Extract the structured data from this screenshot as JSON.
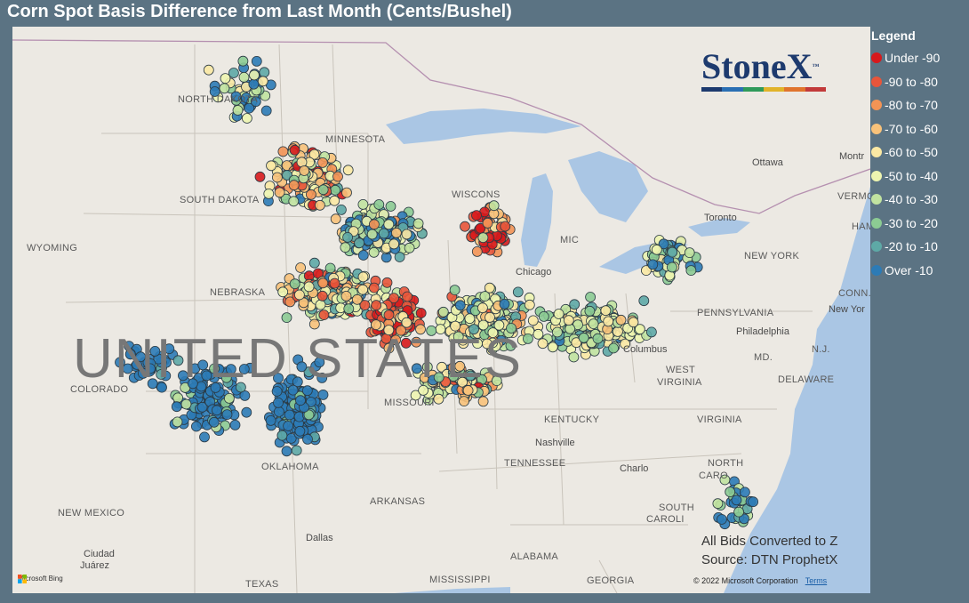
{
  "title": "Corn Spot Basis Difference from Last Month (Cents/Bushel)",
  "legend": {
    "title": "Legend",
    "items": [
      {
        "label": "Under -90",
        "color": "#d7191c"
      },
      {
        "label": "-90 to -80",
        "color": "#e8553a"
      },
      {
        "label": "-80 to -70",
        "color": "#f39455"
      },
      {
        "label": "-70 to -60",
        "color": "#f8c27a"
      },
      {
        "label": "-60 to -50",
        "color": "#fbe9a4"
      },
      {
        "label": "-50 to -40",
        "color": "#eef5b0"
      },
      {
        "label": "-40 to -30",
        "color": "#c1e3a0"
      },
      {
        "label": "-30 to -20",
        "color": "#8ccb93"
      },
      {
        "label": "-20 to -10",
        "color": "#5ea9a6"
      },
      {
        "label": "Over -10",
        "color": "#2c7bb6"
      }
    ]
  },
  "logo": {
    "name": "StoneX",
    "tm": "™",
    "bar_colors": [
      "#1d3a6e",
      "#2a6fb3",
      "#2f9a5a",
      "#e1b32a",
      "#e0742d",
      "#c23a3a"
    ]
  },
  "notes": {
    "line1": "All Bids Converted to Z",
    "line2": "Source: DTN ProphetX"
  },
  "copyright": {
    "text": "© 2022 Microsoft Corporation",
    "terms": "Terms"
  },
  "attribution": {
    "text": "Microsoft Bing"
  },
  "map_labels": {
    "big_country": "UNITED STATES",
    "north_dakota": "NORTH DAKOTA",
    "minnesota": "MINNESOTA",
    "south_dakota": "SOUTH DAKOTA",
    "wyoming": "WYOMING",
    "nebraska": "NEBRASKA",
    "colorado": "COLORADO",
    "missouri": "MISSOURI",
    "oklahoma": "OKLAHOMA",
    "arkansas": "ARKANSAS",
    "new_mexico": "NEW MEXICO",
    "texas": "TEXAS",
    "mississippi": "MISSISSIPPI",
    "alabama": "ALABAMA",
    "georgia": "GEORGIA",
    "tennessee": "TENNESSEE",
    "kentucky": "KENTUCKY",
    "virginia": "VIRGINIA",
    "west_virginia_1": "WEST",
    "west_virginia_2": "VIRGINIA",
    "pennsylvania": "PENNSYLVANIA",
    "new_york": "NEW YORK",
    "north_carolina_1": "NORTH",
    "north_carolina_2": "CARO",
    "south_carolina_1": "SOUTH",
    "south_carolina_2": "CAROLI",
    "delaware": "DELAWARE",
    "md": "MD.",
    "nj": "N.J.",
    "conn": "CONN.",
    "vermont": "VERMO",
    "michigan": "MIC",
    "wisconsin": "WISCONS",
    "ham": "HAM",
    "chicago": "Chicago",
    "columbus": "Columbus",
    "nashville": "Nashville",
    "charlotte": "Charlo",
    "philadelphia": "Philadelphia",
    "new_york_city": "New Yor",
    "toronto": "Toronto",
    "ottawa": "Ottawa",
    "montreal": "Montr",
    "dallas": "Dallas",
    "ciudad_juarez_1": "Ciudad",
    "ciudad_juarez_2": "Juárez"
  }
}
